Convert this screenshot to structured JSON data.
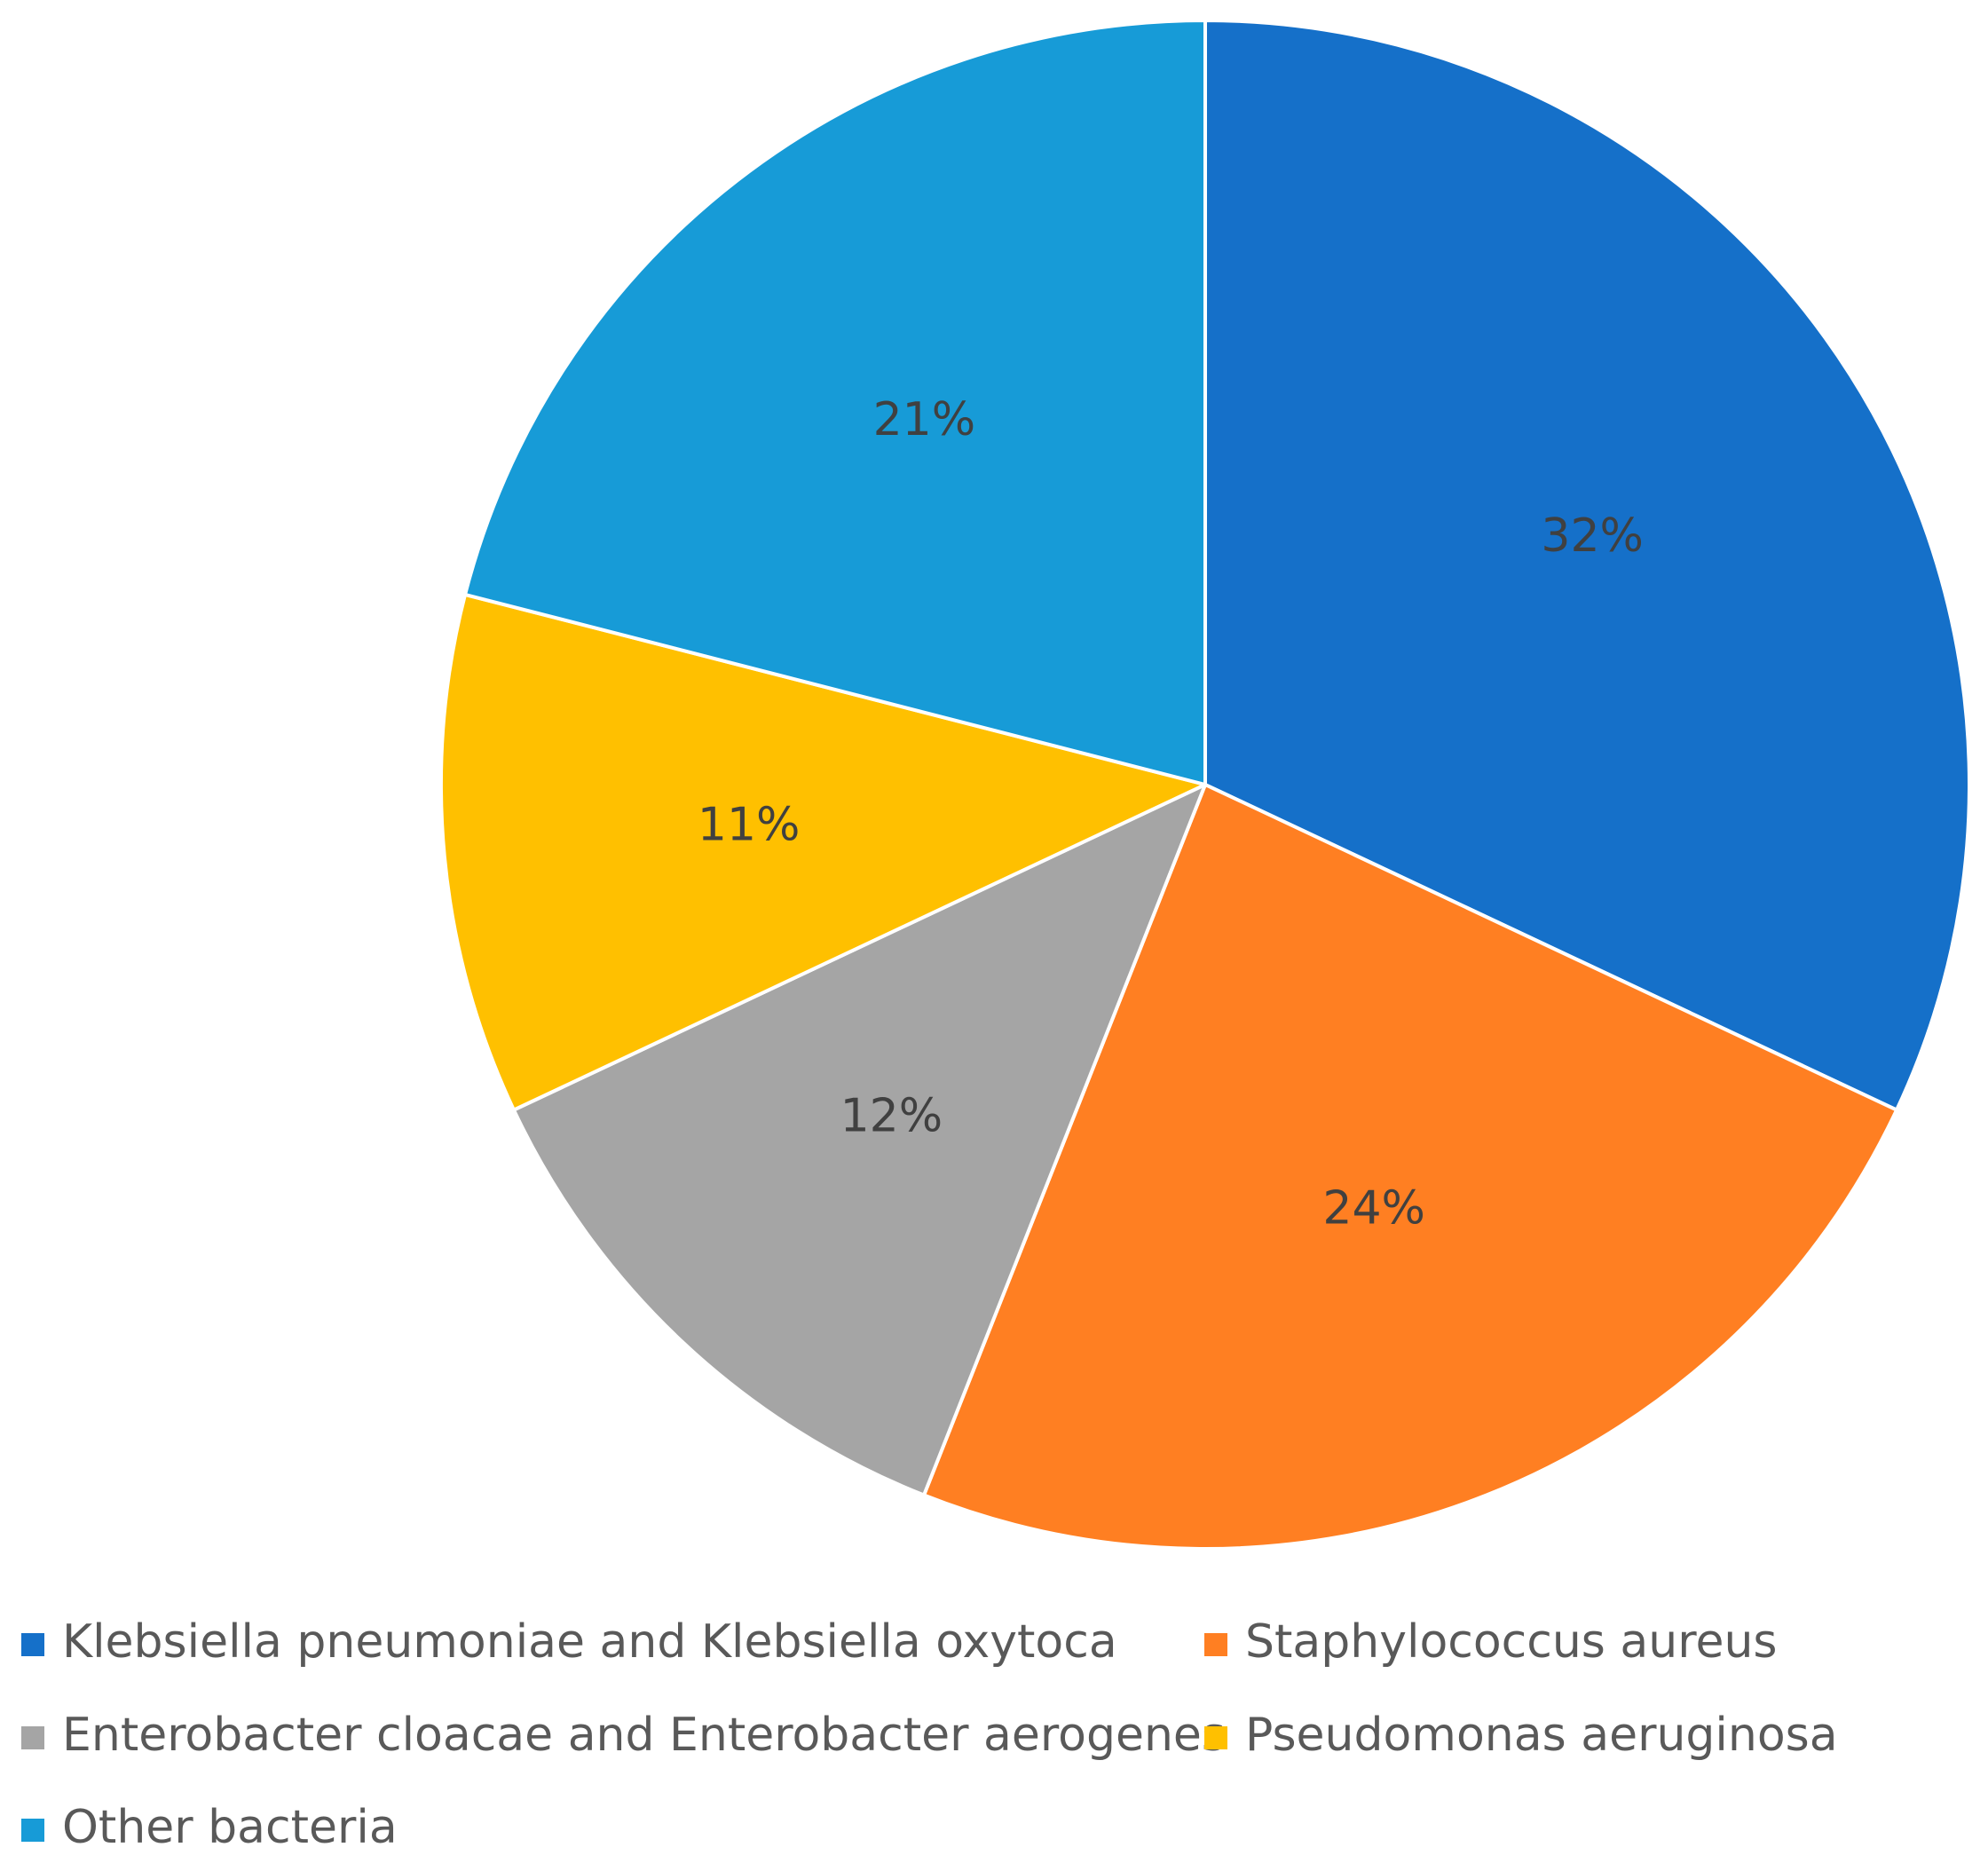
{
  "chart_data": {
    "type": "pie",
    "title": "",
    "start_angle_deg": 0,
    "direction": "clockwise",
    "legend_position": "bottom",
    "slices": [
      {
        "label": "Klebsiella pneumoniae and Klebsiella oxytoca",
        "value": 32,
        "display": "32%",
        "color": "#1570C9"
      },
      {
        "label": "Staphylococcus aureus",
        "value": 24,
        "display": "24%",
        "color": "#FF7F22"
      },
      {
        "label": "Enterobacter cloacae and Enterobacter aerogenes",
        "value": 12,
        "display": "12%",
        "color": "#A5A5A5"
      },
      {
        "label": "Pseudomonas aeruginosa",
        "value": 11,
        "display": "11%",
        "color": "#FFC000"
      },
      {
        "label": "Other bacteria",
        "value": 21,
        "display": "21%",
        "color": "#179BD7"
      }
    ]
  }
}
